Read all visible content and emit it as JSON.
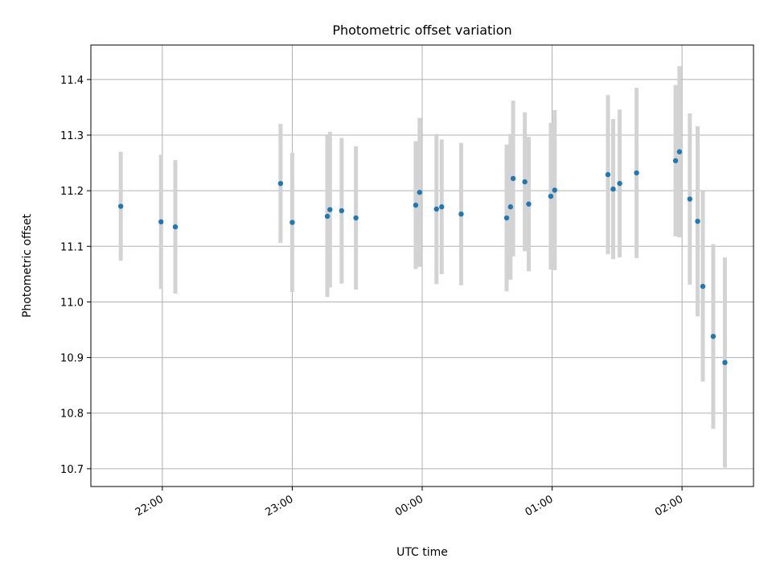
{
  "chart_data": {
    "type": "scatter",
    "title": "Photometric offset variation",
    "xlabel": "UTC time",
    "ylabel": "Photometric offset",
    "grid": true,
    "x_unit": "UTC time, hours after midnight (negative = previous day)",
    "xlim": [
      -2.55,
      2.55
    ],
    "ylim": [
      10.668,
      11.462
    ],
    "x_ticks": [
      {
        "value": -2,
        "label": "22:00"
      },
      {
        "value": -1,
        "label": "23:00"
      },
      {
        "value": 0,
        "label": "00:00"
      },
      {
        "value": 1,
        "label": "01:00"
      },
      {
        "value": 2,
        "label": "02:00"
      }
    ],
    "y_ticks": [
      {
        "value": 10.7,
        "label": "10.7"
      },
      {
        "value": 10.8,
        "label": "10.8"
      },
      {
        "value": 10.9,
        "label": "10.9"
      },
      {
        "value": 11.0,
        "label": "11.0"
      },
      {
        "value": 11.1,
        "label": "11.1"
      },
      {
        "value": 11.2,
        "label": "11.2"
      },
      {
        "value": 11.3,
        "label": "11.3"
      },
      {
        "value": 11.4,
        "label": "11.4"
      }
    ],
    "colors": {
      "marker": "#1f77b4",
      "errorbar": "#d3d3d3",
      "grid": "#b0b0b0"
    },
    "points": [
      {
        "x": -2.32,
        "y": 11.172,
        "err": 0.098
      },
      {
        "x": -2.01,
        "y": 11.144,
        "err": 0.121
      },
      {
        "x": -1.9,
        "y": 11.135,
        "err": 0.12
      },
      {
        "x": -1.09,
        "y": 11.213,
        "err": 0.107
      },
      {
        "x": -1.0,
        "y": 11.143,
        "err": 0.125
      },
      {
        "x": -0.73,
        "y": 11.154,
        "err": 0.145
      },
      {
        "x": -0.71,
        "y": 11.166,
        "err": 0.14
      },
      {
        "x": -0.62,
        "y": 11.164,
        "err": 0.131
      },
      {
        "x": -0.51,
        "y": 11.151,
        "err": 0.129
      },
      {
        "x": -0.05,
        "y": 11.174,
        "err": 0.115
      },
      {
        "x": -0.02,
        "y": 11.197,
        "err": 0.134
      },
      {
        "x": 0.11,
        "y": 11.167,
        "err": 0.135
      },
      {
        "x": 0.15,
        "y": 11.171,
        "err": 0.121
      },
      {
        "x": 0.3,
        "y": 11.158,
        "err": 0.128
      },
      {
        "x": 0.65,
        "y": 11.151,
        "err": 0.132
      },
      {
        "x": 0.68,
        "y": 11.171,
        "err": 0.131
      },
      {
        "x": 0.7,
        "y": 11.222,
        "err": 0.14
      },
      {
        "x": 0.79,
        "y": 11.216,
        "err": 0.125
      },
      {
        "x": 0.82,
        "y": 11.176,
        "err": 0.121
      },
      {
        "x": 0.99,
        "y": 11.19,
        "err": 0.132
      },
      {
        "x": 1.02,
        "y": 11.201,
        "err": 0.144
      },
      {
        "x": 1.43,
        "y": 11.229,
        "err": 0.143
      },
      {
        "x": 1.47,
        "y": 11.203,
        "err": 0.126
      },
      {
        "x": 1.52,
        "y": 11.213,
        "err": 0.133
      },
      {
        "x": 1.65,
        "y": 11.232,
        "err": 0.153
      },
      {
        "x": 1.95,
        "y": 11.254,
        "err": 0.136
      },
      {
        "x": 1.98,
        "y": 11.27,
        "err": 0.154
      },
      {
        "x": 2.06,
        "y": 11.185,
        "err": 0.154
      },
      {
        "x": 2.12,
        "y": 11.145,
        "err": 0.171
      },
      {
        "x": 2.16,
        "y": 11.028,
        "err": 0.171
      },
      {
        "x": 2.24,
        "y": 10.938,
        "err": 0.166
      },
      {
        "x": 2.33,
        "y": 10.891,
        "err": 0.189
      }
    ]
  }
}
